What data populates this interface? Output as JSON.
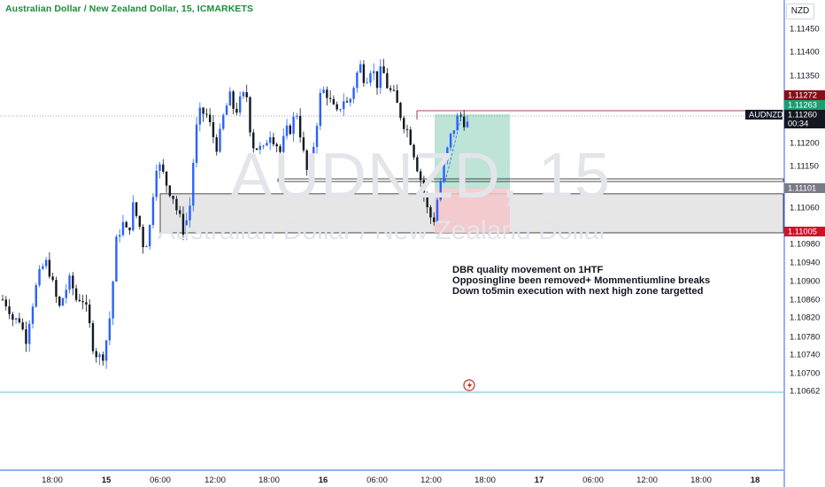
{
  "title": "Australian Dollar / New Zealand Dollar, 15, ICMARKETS",
  "watermark": {
    "symbol": "AUDNZD, 15",
    "description": "Australian Dollar / New Zealand Dollar"
  },
  "currency": "NZD",
  "annotation": [
    "DBR quality movement on 1HTF",
    "Opposingline been removed+ Mommentiumline breaks",
    "Down to5min execution with next high zone targetted"
  ],
  "colors": {
    "bull": "#2962ff",
    "bear": "#131722",
    "profit_zone": "#b2dfcf",
    "loss_zone": "#f5c6c9",
    "zone_grey": "#e0e0e0",
    "accent_green": "#1b8c3b",
    "target_red": "#880e1a",
    "entry_green": "#1a9f72",
    "stop_red": "#d1102a",
    "cyan_line": "#65c3c8"
  },
  "price_scale": {
    "ticks": [
      "1.11450",
      "1.11400",
      "1.11350",
      "1.11200",
      "1.11150",
      "1.11060",
      "1.10980",
      "1.10940",
      "1.10900",
      "1.10860",
      "1.10820",
      "1.10780",
      "1.10740",
      "1.10700",
      "1.10662"
    ],
    "labels": [
      {
        "text": "1.11272",
        "kind": "target"
      },
      {
        "text": "1.11263",
        "kind": "entry"
      },
      {
        "text": "AUDNZD",
        "kind": "symbol"
      },
      {
        "text": "1.11260",
        "kind": "last"
      },
      {
        "text": "00:34",
        "kind": "countdown"
      },
      {
        "text": "1.11101",
        "kind": "line"
      },
      {
        "text": "1.11005",
        "kind": "stop"
      }
    ]
  },
  "time_axis": {
    "labels": [
      {
        "text": "18:00",
        "bold": false
      },
      {
        "text": "15",
        "bold": true
      },
      {
        "text": "06:00",
        "bold": false
      },
      {
        "text": "12:00",
        "bold": false
      },
      {
        "text": "18:00",
        "bold": false
      },
      {
        "text": "16",
        "bold": true
      },
      {
        "text": "06:00",
        "bold": false
      },
      {
        "text": "12:00",
        "bold": false
      },
      {
        "text": "18:00",
        "bold": false
      },
      {
        "text": "17",
        "bold": true
      },
      {
        "text": "06:00",
        "bold": false
      },
      {
        "text": "12:00",
        "bold": false
      },
      {
        "text": "18:00",
        "bold": false
      },
      {
        "text": "18",
        "bold": true
      }
    ]
  },
  "chart_data": {
    "type": "candlestick",
    "symbol": "AUDNZD",
    "timeframe": "15",
    "ylim": [
      1.1064,
      1.115
    ],
    "last_price": 1.1126,
    "position": {
      "entry": 1.11263,
      "target": 1.11272,
      "stop": 1.11005,
      "direction": "long"
    },
    "horizontal_lines": [
      1.11101,
      1.10662
    ],
    "demand_zone": {
      "top": 1.1109,
      "bottom": 1.11005
    },
    "path": [
      1.1086,
      1.1085,
      1.1081,
      1.1082,
      1.1077,
      1.1084,
      1.1089,
      1.1093,
      1.1094,
      1.1088,
      1.1084,
      1.1088,
      1.109,
      1.1086,
      1.1087,
      1.1082,
      1.1076,
      1.1073,
      1.1075,
      1.1083,
      1.1098,
      1.1103,
      1.11,
      1.1106,
      1.1103,
      1.1097,
      1.1102,
      1.1116,
      1.1114,
      1.1111,
      1.1109,
      1.1104,
      1.1101,
      1.1106,
      1.1122,
      1.1127,
      1.1126,
      1.1122,
      1.1119,
      1.1126,
      1.113,
      1.1127,
      1.1129,
      1.1131,
      1.112,
      1.1119,
      1.1118,
      1.1123,
      1.1121,
      1.1118,
      1.1122,
      1.1124,
      1.1127,
      1.1118,
      1.1112,
      1.1121,
      1.113,
      1.1132,
      1.1128,
      1.1126,
      1.113,
      1.1128,
      1.1133,
      1.1137,
      1.1134,
      1.1137,
      1.1133,
      1.1136,
      1.1132,
      1.113,
      1.1127,
      1.1124,
      1.1121,
      1.1116,
      1.1111,
      1.1105,
      1.1103,
      1.111,
      1.1116,
      1.1121,
      1.1125,
      1.1126,
      1.1124
    ],
    "candle_count": 140
  }
}
